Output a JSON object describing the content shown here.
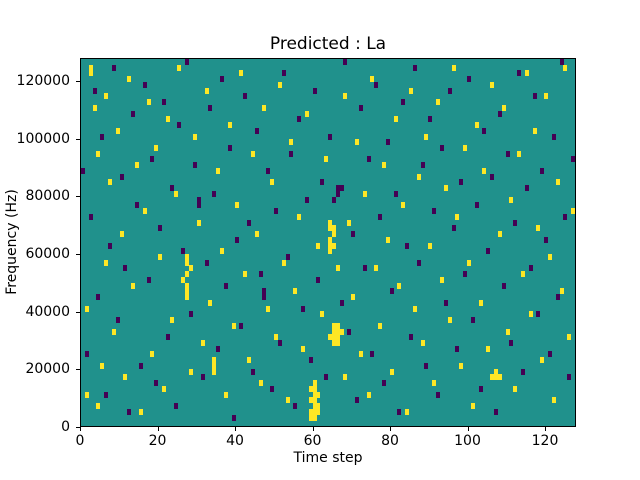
{
  "chart_data": {
    "type": "heatmap",
    "title": "Predicted : La",
    "xlabel": "Time step",
    "ylabel": "Frequency (Hz)",
    "xlim": [
      0,
      128
    ],
    "ylim": [
      0,
      128000
    ],
    "xticks": [
      0,
      20,
      40,
      60,
      80,
      100,
      120
    ],
    "xtick_labels": [
      "0",
      "20",
      "40",
      "60",
      "80",
      "100",
      "120"
    ],
    "yticks": [
      0,
      20000,
      40000,
      60000,
      80000,
      100000,
      120000
    ],
    "ytick_labels": [
      "0",
      "20000",
      "40000",
      "60000",
      "80000",
      "100000",
      "120000"
    ],
    "grid": false,
    "legend": "none",
    "colors": {
      "background": "#20918c",
      "spike_high": "#fde725",
      "spike_low": "#440154",
      "figure_background": "#ffffff",
      "axis": "#000000"
    },
    "grid_size": {
      "time_steps": 128,
      "freq_bins": 64,
      "hz_per_bin": 2000
    },
    "cells": {
      "yellow": [
        [
          1,
          5
        ],
        [
          1,
          20
        ],
        [
          2,
          61
        ],
        [
          2,
          62
        ],
        [
          3,
          55
        ],
        [
          4,
          3
        ],
        [
          4,
          47
        ],
        [
          5,
          10
        ],
        [
          6,
          28
        ],
        [
          6,
          57
        ],
        [
          7,
          42
        ],
        [
          8,
          16
        ],
        [
          9,
          51
        ],
        [
          10,
          33
        ],
        [
          11,
          8
        ],
        [
          12,
          60
        ],
        [
          13,
          24
        ],
        [
          14,
          45
        ],
        [
          15,
          2
        ],
        [
          16,
          37
        ],
        [
          17,
          56
        ],
        [
          18,
          12
        ],
        [
          19,
          48
        ],
        [
          20,
          29
        ],
        [
          21,
          6
        ],
        [
          22,
          53
        ],
        [
          23,
          18
        ],
        [
          24,
          40
        ],
        [
          25,
          62
        ],
        [
          26,
          25
        ],
        [
          27,
          22
        ],
        [
          27,
          23
        ],
        [
          27,
          24
        ],
        [
          27,
          26
        ],
        [
          27,
          28
        ],
        [
          27,
          29
        ],
        [
          28,
          9
        ],
        [
          28,
          27
        ],
        [
          29,
          50
        ],
        [
          30,
          35
        ],
        [
          31,
          14
        ],
        [
          32,
          58
        ],
        [
          33,
          21
        ],
        [
          34,
          9
        ],
        [
          34,
          10
        ],
        [
          34,
          11
        ],
        [
          35,
          44
        ],
        [
          36,
          30
        ],
        [
          37,
          5
        ],
        [
          38,
          52
        ],
        [
          39,
          17
        ],
        [
          40,
          38
        ],
        [
          41,
          61
        ],
        [
          42,
          26
        ],
        [
          43,
          11
        ],
        [
          44,
          47
        ],
        [
          45,
          33
        ],
        [
          46,
          7
        ],
        [
          47,
          55
        ],
        [
          48,
          20
        ],
        [
          49,
          42
        ],
        [
          50,
          15
        ],
        [
          51,
          59
        ],
        [
          52,
          28
        ],
        [
          53,
          4
        ],
        [
          54,
          49
        ],
        [
          55,
          23
        ],
        [
          56,
          36
        ],
        [
          57,
          13
        ],
        [
          58,
          54
        ],
        [
          59,
          1
        ],
        [
          59,
          2
        ],
        [
          59,
          4
        ],
        [
          59,
          6
        ],
        [
          60,
          1
        ],
        [
          60,
          2
        ],
        [
          60,
          3
        ],
        [
          60,
          4
        ],
        [
          60,
          5
        ],
        [
          60,
          6
        ],
        [
          60,
          7
        ],
        [
          61,
          2
        ],
        [
          61,
          3
        ],
        [
          61,
          5
        ],
        [
          61,
          31
        ],
        [
          62,
          19
        ],
        [
          63,
          46
        ],
        [
          64,
          15
        ],
        [
          64,
          30
        ],
        [
          64,
          31
        ],
        [
          64,
          32
        ],
        [
          64,
          34
        ],
        [
          64,
          35
        ],
        [
          65,
          14
        ],
        [
          65,
          15
        ],
        [
          65,
          16
        ],
        [
          65,
          17
        ],
        [
          65,
          31
        ],
        [
          65,
          33
        ],
        [
          65,
          34
        ],
        [
          66,
          14
        ],
        [
          66,
          15
        ],
        [
          66,
          16
        ],
        [
          66,
          17
        ],
        [
          66,
          27
        ],
        [
          67,
          16
        ],
        [
          67,
          41
        ],
        [
          68,
          8
        ],
        [
          68,
          57
        ],
        [
          69,
          35
        ],
        [
          70,
          22
        ],
        [
          71,
          49
        ],
        [
          72,
          12
        ],
        [
          73,
          40
        ],
        [
          74,
          5
        ],
        [
          75,
          60
        ],
        [
          76,
          27
        ],
        [
          77,
          17
        ],
        [
          78,
          45
        ],
        [
          79,
          32
        ],
        [
          80,
          9
        ],
        [
          81,
          53
        ],
        [
          82,
          24
        ],
        [
          83,
          38
        ],
        [
          84,
          2
        ],
        [
          85,
          58
        ],
        [
          86,
          20
        ],
        [
          87,
          43
        ],
        [
          88,
          14
        ],
        [
          89,
          50
        ],
        [
          90,
          31
        ],
        [
          91,
          7
        ],
        [
          92,
          56
        ],
        [
          93,
          25
        ],
        [
          94,
          41
        ],
        [
          95,
          18
        ],
        [
          96,
          62
        ],
        [
          97,
          36
        ],
        [
          98,
          10
        ],
        [
          99,
          48
        ],
        [
          100,
          28
        ],
        [
          101,
          3
        ],
        [
          102,
          52
        ],
        [
          103,
          21
        ],
        [
          104,
          44
        ],
        [
          105,
          13
        ],
        [
          106,
          8
        ],
        [
          106,
          59
        ],
        [
          107,
          8
        ],
        [
          107,
          9
        ],
        [
          108,
          8
        ],
        [
          108,
          33
        ],
        [
          109,
          55
        ],
        [
          110,
          16
        ],
        [
          111,
          39
        ],
        [
          112,
          6
        ],
        [
          113,
          47
        ],
        [
          114,
          26
        ],
        [
          115,
          61
        ],
        [
          116,
          19
        ],
        [
          117,
          51
        ],
        [
          118,
          34
        ],
        [
          119,
          11
        ],
        [
          120,
          57
        ],
        [
          121,
          29
        ],
        [
          122,
          4
        ],
        [
          123,
          42
        ],
        [
          124,
          23
        ],
        [
          125,
          62
        ],
        [
          126,
          15
        ],
        [
          127,
          37
        ]
      ],
      "dark": [
        [
          0,
          44
        ],
        [
          1,
          12
        ],
        [
          2,
          36
        ],
        [
          3,
          58
        ],
        [
          4,
          22
        ],
        [
          5,
          50
        ],
        [
          6,
          5
        ],
        [
          7,
          31
        ],
        [
          8,
          62
        ],
        [
          9,
          18
        ],
        [
          10,
          43
        ],
        [
          11,
          27
        ],
        [
          12,
          2
        ],
        [
          13,
          54
        ],
        [
          14,
          38
        ],
        [
          15,
          10
        ],
        [
          16,
          59
        ],
        [
          17,
          25
        ],
        [
          18,
          46
        ],
        [
          19,
          7
        ],
        [
          20,
          34
        ],
        [
          21,
          56
        ],
        [
          22,
          15
        ],
        [
          23,
          41
        ],
        [
          24,
          3
        ],
        [
          25,
          52
        ],
        [
          26,
          30
        ],
        [
          27,
          63
        ],
        [
          28,
          19
        ],
        [
          29,
          45
        ],
        [
          30,
          38
        ],
        [
          30,
          39
        ],
        [
          31,
          8
        ],
        [
          32,
          28
        ],
        [
          33,
          55
        ],
        [
          34,
          40
        ],
        [
          35,
          13
        ],
        [
          36,
          60
        ],
        [
          37,
          24
        ],
        [
          38,
          48
        ],
        [
          39,
          1
        ],
        [
          40,
          32
        ],
        [
          41,
          17
        ],
        [
          42,
          57
        ],
        [
          43,
          35
        ],
        [
          44,
          9
        ],
        [
          45,
          51
        ],
        [
          46,
          26
        ],
        [
          47,
          22
        ],
        [
          47,
          23
        ],
        [
          48,
          44
        ],
        [
          49,
          6
        ],
        [
          50,
          37
        ],
        [
          51,
          14
        ],
        [
          52,
          61
        ],
        [
          53,
          29
        ],
        [
          54,
          47
        ],
        [
          55,
          3
        ],
        [
          56,
          53
        ],
        [
          57,
          20
        ],
        [
          58,
          39
        ],
        [
          59,
          11
        ],
        [
          60,
          58
        ],
        [
          61,
          25
        ],
        [
          62,
          42
        ],
        [
          63,
          8
        ],
        [
          64,
          50
        ],
        [
          65,
          39
        ],
        [
          66,
          40
        ],
        [
          66,
          41
        ],
        [
          67,
          21
        ],
        [
          67,
          41
        ],
        [
          68,
          63
        ],
        [
          69,
          16
        ],
        [
          70,
          33
        ],
        [
          71,
          4
        ],
        [
          72,
          55
        ],
        [
          73,
          27
        ],
        [
          74,
          46
        ],
        [
          75,
          12
        ],
        [
          76,
          59
        ],
        [
          77,
          36
        ],
        [
          78,
          7
        ],
        [
          79,
          49
        ],
        [
          80,
          23
        ],
        [
          81,
          40
        ],
        [
          82,
          2
        ],
        [
          83,
          56
        ],
        [
          84,
          31
        ],
        [
          85,
          15
        ],
        [
          86,
          62
        ],
        [
          87,
          28
        ],
        [
          88,
          45
        ],
        [
          89,
          10
        ],
        [
          90,
          53
        ],
        [
          91,
          37
        ],
        [
          92,
          5
        ],
        [
          93,
          48
        ],
        [
          94,
          21
        ],
        [
          95,
          58
        ],
        [
          96,
          34
        ],
        [
          97,
          13
        ],
        [
          98,
          42
        ],
        [
          99,
          26
        ],
        [
          100,
          60
        ],
        [
          101,
          18
        ],
        [
          102,
          38
        ],
        [
          103,
          6
        ],
        [
          104,
          51
        ],
        [
          105,
          30
        ],
        [
          106,
          43
        ],
        [
          107,
          2
        ],
        [
          108,
          54
        ],
        [
          109,
          24
        ],
        [
          110,
          47
        ],
        [
          111,
          14
        ],
        [
          112,
          35
        ],
        [
          113,
          61
        ],
        [
          114,
          9
        ],
        [
          115,
          41
        ],
        [
          116,
          27
        ],
        [
          117,
          57
        ],
        [
          118,
          19
        ],
        [
          119,
          44
        ],
        [
          120,
          32
        ],
        [
          121,
          12
        ],
        [
          122,
          50
        ],
        [
          123,
          22
        ],
        [
          124,
          63
        ],
        [
          125,
          36
        ],
        [
          126,
          8
        ],
        [
          127,
          46
        ]
      ]
    }
  }
}
